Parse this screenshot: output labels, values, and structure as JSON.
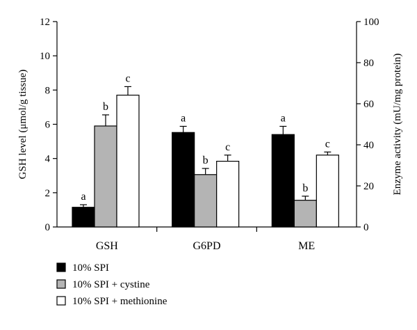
{
  "chart_data": {
    "type": "bar",
    "categories": [
      "GSH",
      "G6PD",
      "ME"
    ],
    "series": [
      {
        "name": "10% SPI",
        "color": "#000000",
        "values": [
          1.15,
          46,
          45
        ],
        "errors": [
          0.15,
          3,
          4
        ],
        "letters": [
          "a",
          "a",
          "a"
        ]
      },
      {
        "name": "10% SPI + cystine",
        "color": "#b4b4b4",
        "values": [
          5.9,
          25.5,
          13
        ],
        "errors": [
          0.65,
          3,
          2
        ],
        "letters": [
          "b",
          "b",
          "b"
        ]
      },
      {
        "name": "10% SPI + methionine",
        "color": "#ffffff",
        "values": [
          7.7,
          32,
          35
        ],
        "errors": [
          0.5,
          3,
          1.5
        ],
        "letters": [
          "c",
          "c",
          "c"
        ]
      }
    ],
    "axis_assignment": [
      "left",
      "right",
      "right"
    ],
    "y_left": {
      "label": "GSH level (μmol/g tissue)",
      "ylim": [
        0,
        12
      ],
      "ticks": [
        "0",
        "2",
        "4",
        "6",
        "8",
        "10",
        "12"
      ]
    },
    "y_right": {
      "label": "Enzyme activity (mU/mg protein)",
      "ylim": [
        0,
        100
      ],
      "ticks": [
        "0",
        "20",
        "40",
        "60",
        "80",
        "100"
      ]
    },
    "legend_position": "bottom-left",
    "grid": false
  }
}
